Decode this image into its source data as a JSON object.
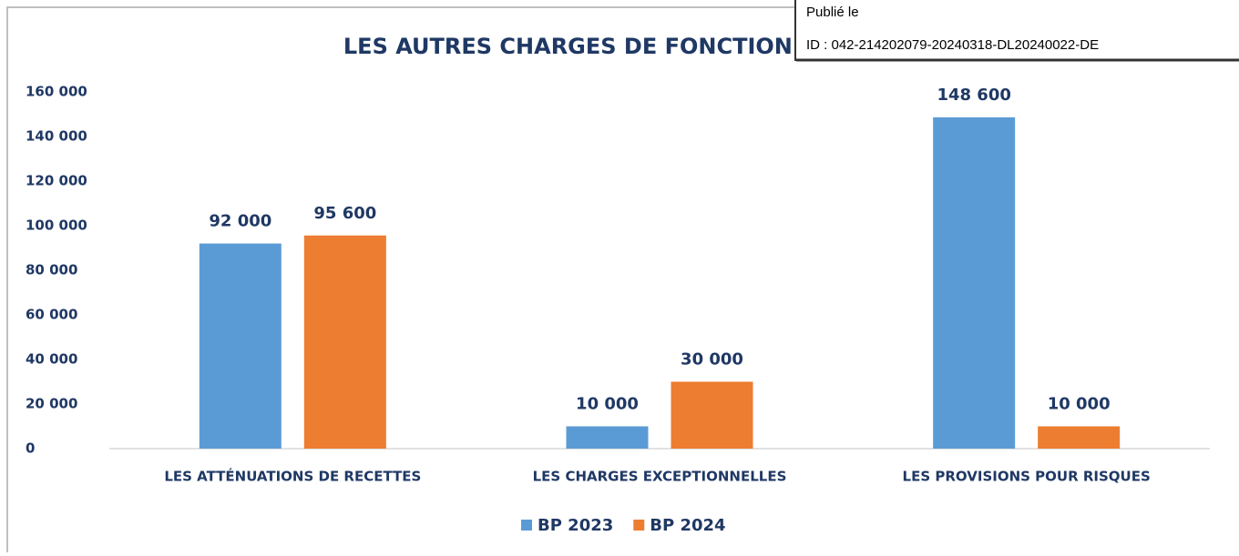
{
  "chart_data": {
    "type": "bar",
    "title": "LES AUTRES CHARGES DE FONCTIONNEMENT",
    "categories": [
      "LES ATTÉNUATIONS DE RECETTES",
      "LES CHARGES EXCEPTIONNELLES",
      "LES PROVISIONS POUR RISQUES"
    ],
    "series": [
      {
        "name": "BP 2023",
        "color": "#5b9bd5",
        "values": [
          92000,
          10000,
          148600
        ],
        "value_labels": [
          "92 000",
          "10 000",
          "148 600"
        ]
      },
      {
        "name": "BP 2024",
        "color": "#ed7d31",
        "values": [
          95600,
          30000,
          10000
        ],
        "value_labels": [
          "95 600",
          "30 000",
          "10 000"
        ]
      }
    ],
    "ylim": [
      0,
      160000
    ],
    "yticks": [
      0,
      {
        "value": 20000,
        "label": "20 000"
      },
      {
        "value": 40000,
        "label": "40 000"
      },
      {
        "value": 60000,
        "label": "60 000"
      },
      {
        "value": 80000,
        "label": "80 000"
      },
      {
        "value": 100000,
        "label": "100 000"
      },
      {
        "value": 120000,
        "label": "120 000"
      },
      {
        "value": 140000,
        "label": "140 000"
      },
      {
        "value": 160000,
        "label": "160 000"
      }
    ],
    "grid": false,
    "legend": "bottom"
  },
  "stamp": {
    "line1": "Publié le",
    "line2": "ID : 042-214202079-20240318-DL20240022-DE"
  }
}
